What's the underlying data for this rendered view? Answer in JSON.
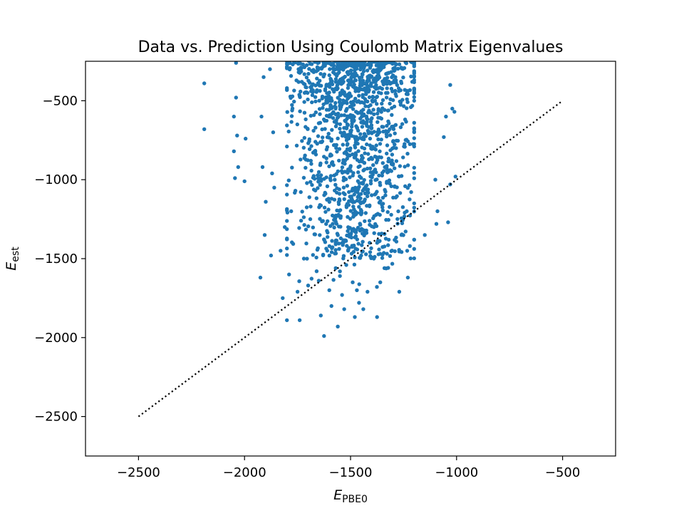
{
  "chart_data": {
    "type": "scatter",
    "title": "Data vs. Prediction Using Coulomb Matrix Eigenvalues",
    "xlabel": {
      "main": "E",
      "sub": "PBE0"
    },
    "ylabel": {
      "main": "E",
      "sub": "est"
    },
    "xlim": [
      -2750,
      -250
    ],
    "ylim": [
      -2750,
      -250
    ],
    "xticks": [
      -2500,
      -2000,
      -1500,
      -1000,
      -500
    ],
    "xtick_labels": [
      "−2500",
      "−2000",
      "−1500",
      "−1000",
      "−500"
    ],
    "yticks": [
      -2500,
      -2000,
      -1500,
      -1000,
      -500
    ],
    "ytick_labels": [
      "−2500",
      "−2000",
      "−1500",
      "−1000",
      "−500"
    ],
    "grid": false,
    "legend": "none",
    "marker_color": "#1f77b4",
    "reference_line": {
      "style": "dotted",
      "color": "#000000",
      "x": [
        -2500,
        -500
      ],
      "y": [
        -2500,
        -500
      ]
    },
    "series": [
      {
        "points": [
          [
            -2190,
            -390
          ],
          [
            -2190,
            -680
          ],
          [
            -2050,
            -600
          ],
          [
            -2050,
            -820
          ],
          [
            -2040,
            -260
          ],
          [
            -2040,
            -480
          ],
          [
            -2045,
            -990
          ],
          [
            -2030,
            -920
          ],
          [
            -2035,
            -720
          ],
          [
            -2000,
            -1010
          ],
          [
            -1995,
            -740
          ],
          [
            -1925,
            -1620
          ],
          [
            -1910,
            -350
          ],
          [
            -1905,
            -1350
          ],
          [
            -1900,
            -1140
          ],
          [
            -1915,
            -920
          ],
          [
            -1920,
            -600
          ],
          [
            -1875,
            -1480
          ],
          [
            -1870,
            -960
          ],
          [
            -1860,
            -1050
          ],
          [
            -1880,
            -300
          ],
          [
            -1865,
            -700
          ],
          [
            -1820,
            -1750
          ],
          [
            -1800,
            -1890
          ],
          [
            -1810,
            -1300
          ],
          [
            -1790,
            -1600
          ],
          [
            -1830,
            -1450
          ],
          [
            -1780,
            -1200
          ],
          [
            -1760,
            -1070
          ],
          [
            -1750,
            -1710
          ],
          [
            -1740,
            -1890
          ],
          [
            -1730,
            -380
          ],
          [
            -1720,
            -1500
          ],
          [
            -1700,
            -1670
          ],
          [
            -1690,
            -1250
          ],
          [
            -1685,
            -900
          ],
          [
            -1660,
            -1580
          ],
          [
            -1650,
            -1640
          ],
          [
            -1640,
            -1860
          ],
          [
            -1625,
            -1990
          ],
          [
            -1610,
            -1450
          ],
          [
            -1600,
            -1700
          ],
          [
            -1590,
            -1800
          ],
          [
            -1570,
            -1560
          ],
          [
            -1560,
            -1930
          ],
          [
            -1550,
            -1610
          ],
          [
            -1540,
            -1730
          ],
          [
            -1530,
            -1820
          ],
          [
            -1520,
            -1540
          ],
          [
            -1500,
            -1350
          ],
          [
            -1490,
            -1650
          ],
          [
            -1480,
            -1870
          ],
          [
            -1470,
            -1700
          ],
          [
            -1460,
            -1780
          ],
          [
            -1450,
            -1480
          ],
          [
            -1440,
            -1820
          ],
          [
            -1420,
            -1710
          ],
          [
            -1410,
            -1400
          ],
          [
            -1390,
            -1300
          ],
          [
            -1375,
            -1870
          ],
          [
            -1360,
            -1650
          ],
          [
            -1340,
            -1560
          ],
          [
            -1320,
            -1380
          ],
          [
            -1270,
            -1710
          ],
          [
            -1260,
            -1350
          ],
          [
            -1230,
            -1620
          ],
          [
            -1220,
            -1420
          ],
          [
            -1200,
            -1150
          ],
          [
            -1150,
            -1350
          ],
          [
            -1100,
            -1000
          ],
          [
            -1095,
            -1280
          ],
          [
            -1090,
            -1200
          ],
          [
            -1060,
            -730
          ],
          [
            -1050,
            -600
          ],
          [
            -1040,
            -1270
          ],
          [
            -1030,
            -1030
          ],
          [
            -1020,
            -550
          ],
          [
            -1030,
            -400
          ],
          [
            -1010,
            -570
          ],
          [
            -1005,
            -980
          ]
        ],
        "dense_region": {
          "x_range": [
            -1800,
            -1200
          ],
          "x_center": -1480,
          "x_spread": 150,
          "y_top": -250,
          "y_bottom": -1500,
          "approx_points": 1400
        }
      }
    ]
  }
}
